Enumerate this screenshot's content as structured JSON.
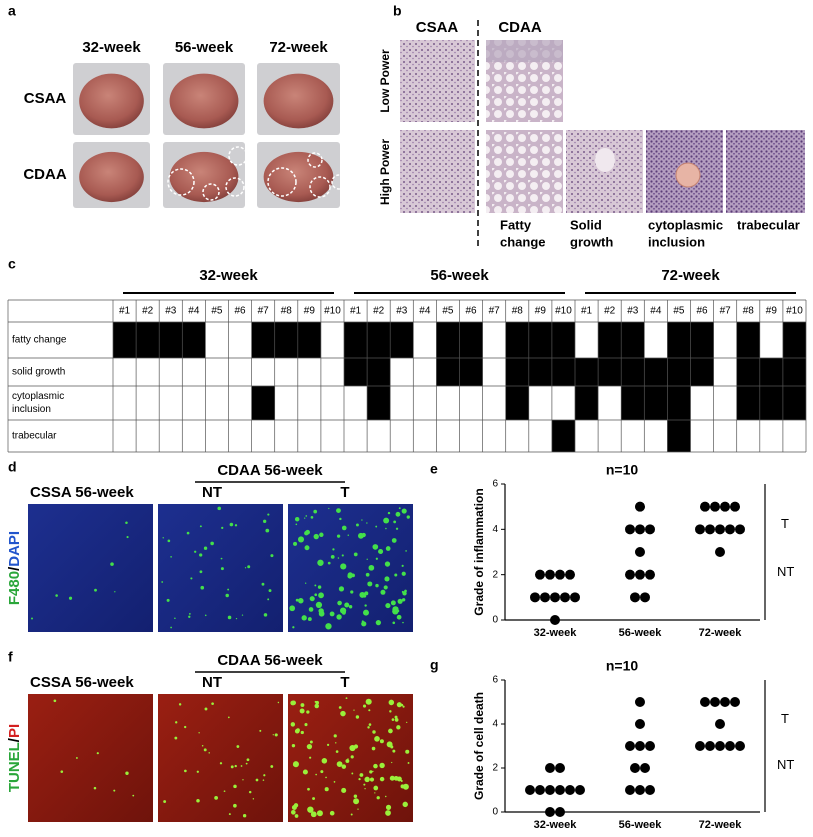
{
  "panels": {
    "a": {
      "label": "a",
      "columns": [
        "32-week",
        "56-week",
        "72-week"
      ],
      "rows": [
        "CSAA",
        "CDAA"
      ]
    },
    "b": {
      "label": "b",
      "groups": [
        "CSAA",
        "CDAA"
      ],
      "rows": [
        "Low Power",
        "High Power"
      ],
      "captions": [
        [
          "Fatty",
          "change"
        ],
        [
          "Solid",
          "growth"
        ],
        [
          "cytoplasmic",
          "inclusion"
        ],
        [
          "trabecular"
        ]
      ]
    },
    "c": {
      "label": "c",
      "weeks": [
        "32-week",
        "56-week",
        "72-week"
      ],
      "samples": [
        "#1",
        "#2",
        "#3",
        "#4",
        "#5",
        "#6",
        "#7",
        "#8",
        "#9",
        "#10"
      ],
      "rows": [
        {
          "name": "fatty change",
          "cells": [
            [
              1,
              1,
              1,
              1,
              0,
              0,
              1,
              1,
              1,
              0
            ],
            [
              1,
              1,
              1,
              0,
              1,
              1,
              0,
              1,
              1,
              1
            ],
            [
              0,
              1,
              1,
              0,
              1,
              1,
              0,
              1,
              0,
              1
            ]
          ]
        },
        {
          "name": "solid growth",
          "cells": [
            [
              0,
              0,
              0,
              0,
              0,
              0,
              0,
              0,
              0,
              0
            ],
            [
              1,
              1,
              0,
              0,
              1,
              1,
              0,
              1,
              1,
              1
            ],
            [
              1,
              1,
              1,
              1,
              1,
              1,
              0,
              1,
              1,
              1
            ]
          ]
        },
        {
          "name": [
            "cytoplasmic",
            "inclusion"
          ],
          "cells": [
            [
              0,
              0,
              0,
              0,
              0,
              0,
              1,
              0,
              0,
              0
            ],
            [
              0,
              1,
              0,
              0,
              0,
              0,
              0,
              1,
              0,
              0
            ],
            [
              1,
              0,
              1,
              1,
              1,
              0,
              0,
              1,
              1,
              1
            ]
          ]
        },
        {
          "name": "trabecular",
          "cells": [
            [
              0,
              0,
              0,
              0,
              0,
              0,
              0,
              0,
              0,
              0
            ],
            [
              0,
              0,
              0,
              0,
              0,
              0,
              0,
              0,
              0,
              1
            ],
            [
              0,
              0,
              0,
              0,
              1,
              0,
              0,
              0,
              0,
              0
            ]
          ]
        }
      ]
    },
    "d": {
      "label": "d",
      "control": "CSSA 56-week",
      "group": "CDAA 56-week",
      "subgroups": [
        "NT",
        "T"
      ],
      "stain": [
        "F480",
        "/",
        "DAPI"
      ]
    },
    "f": {
      "label": "f",
      "control": "CSSA 56-week",
      "group": "CDAA 56-week",
      "subgroups": [
        "NT",
        "T"
      ],
      "stain": [
        "TUNEL",
        "/",
        "PI"
      ]
    }
  },
  "chart_data": [
    {
      "type": "strip",
      "panel_label": "e",
      "title": "n=10",
      "y_label": "Grade of inflammation",
      "categories": [
        "32-week",
        "56-week",
        "72-week"
      ],
      "color": "#000000",
      "values": [
        [
          2,
          2,
          2,
          2,
          1,
          1,
          1,
          1,
          1,
          0
        ],
        [
          5,
          4,
          4,
          4,
          3,
          2,
          2,
          2,
          1,
          1
        ],
        [
          5,
          5,
          5,
          5,
          4,
          4,
          4,
          4,
          4,
          3
        ]
      ],
      "ylim": [
        0,
        6
      ],
      "yticks": [
        0,
        2,
        4,
        6
      ],
      "annotations": [
        "T",
        "NT"
      ]
    },
    {
      "type": "strip",
      "panel_label": "g",
      "title": "n=10",
      "y_label": "Grade of cell death",
      "categories": [
        "32-week",
        "56-week",
        "72-week"
      ],
      "color": "#000000",
      "values": [
        [
          2,
          2,
          1,
          1,
          1,
          1,
          1,
          1,
          0,
          0
        ],
        [
          5,
          4,
          3,
          3,
          3,
          2,
          2,
          1,
          1,
          1
        ],
        [
          5,
          5,
          5,
          5,
          4,
          3,
          3,
          3,
          3,
          3
        ]
      ],
      "ylim": [
        0,
        6
      ],
      "yticks": [
        0,
        2,
        4,
        6
      ],
      "annotations": [
        "T",
        "NT"
      ]
    }
  ]
}
